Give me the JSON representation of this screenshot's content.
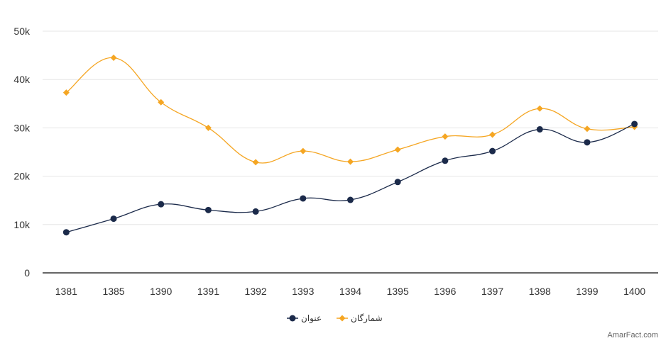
{
  "chart_data": {
    "type": "line",
    "title": "",
    "xlabel": "",
    "ylabel": "",
    "categories": [
      "1381",
      "1385",
      "1390",
      "1391",
      "1392",
      "1393",
      "1394",
      "1395",
      "1396",
      "1397",
      "1398",
      "1399",
      "1400"
    ],
    "series": [
      {
        "name": "عنوان",
        "color": "#1b2a4a",
        "marker": "circle",
        "values": [
          8400,
          11200,
          14200,
          13000,
          12700,
          15400,
          15100,
          18800,
          23200,
          25200,
          29700,
          27000,
          30800
        ]
      },
      {
        "name": "شمارگان",
        "color": "#f5a623",
        "marker": "diamond",
        "values": [
          37300,
          44500,
          35300,
          30000,
          22900,
          25200,
          23000,
          25500,
          28200,
          28600,
          34000,
          29800,
          30200
        ]
      }
    ],
    "ylim": [
      0,
      50000
    ],
    "yticks": [
      {
        "value": 0,
        "label": "0"
      },
      {
        "value": 10000,
        "label": "10k"
      },
      {
        "value": 20000,
        "label": "20k"
      },
      {
        "value": 30000,
        "label": "30k"
      },
      {
        "value": 40000,
        "label": "40k"
      },
      {
        "value": 50000,
        "label": "50k"
      }
    ],
    "grid": true,
    "legend": "bottom-center",
    "credit": "AmarFact.com"
  }
}
